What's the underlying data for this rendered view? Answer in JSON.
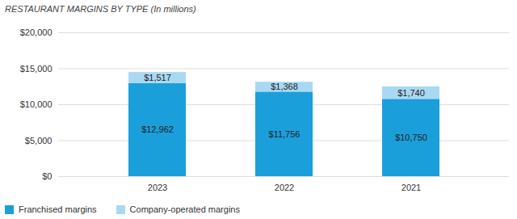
{
  "chart_data": {
    "type": "bar",
    "title": "RESTAURANT MARGINS BY TYPE (In millions)",
    "categories": [
      "2023",
      "2022",
      "2021"
    ],
    "series": [
      {
        "name": "Franchised margins",
        "color": "#1a9fdb",
        "values": [
          12962,
          11756,
          10750
        ],
        "value_labels": [
          "$12,962",
          "$11,756",
          "$10,750"
        ]
      },
      {
        "name": "Company-operated margins",
        "color": "#a9d9f2",
        "values": [
          1517,
          1368,
          1740
        ],
        "value_labels": [
          "$1,517",
          "$1,368",
          "$1,740"
        ]
      }
    ],
    "stacked": true,
    "data_labels": true,
    "grid": true,
    "legend": "bottom-left",
    "ylim": [
      0,
      20000
    ],
    "yticks": [
      {
        "value": 0,
        "label": "$0"
      },
      {
        "value": 5000,
        "label": "$5,000"
      },
      {
        "value": 10000,
        "label": "$10,000"
      },
      {
        "value": 15000,
        "label": "$15,000"
      },
      {
        "value": 20000,
        "label": "$20,000"
      }
    ]
  }
}
